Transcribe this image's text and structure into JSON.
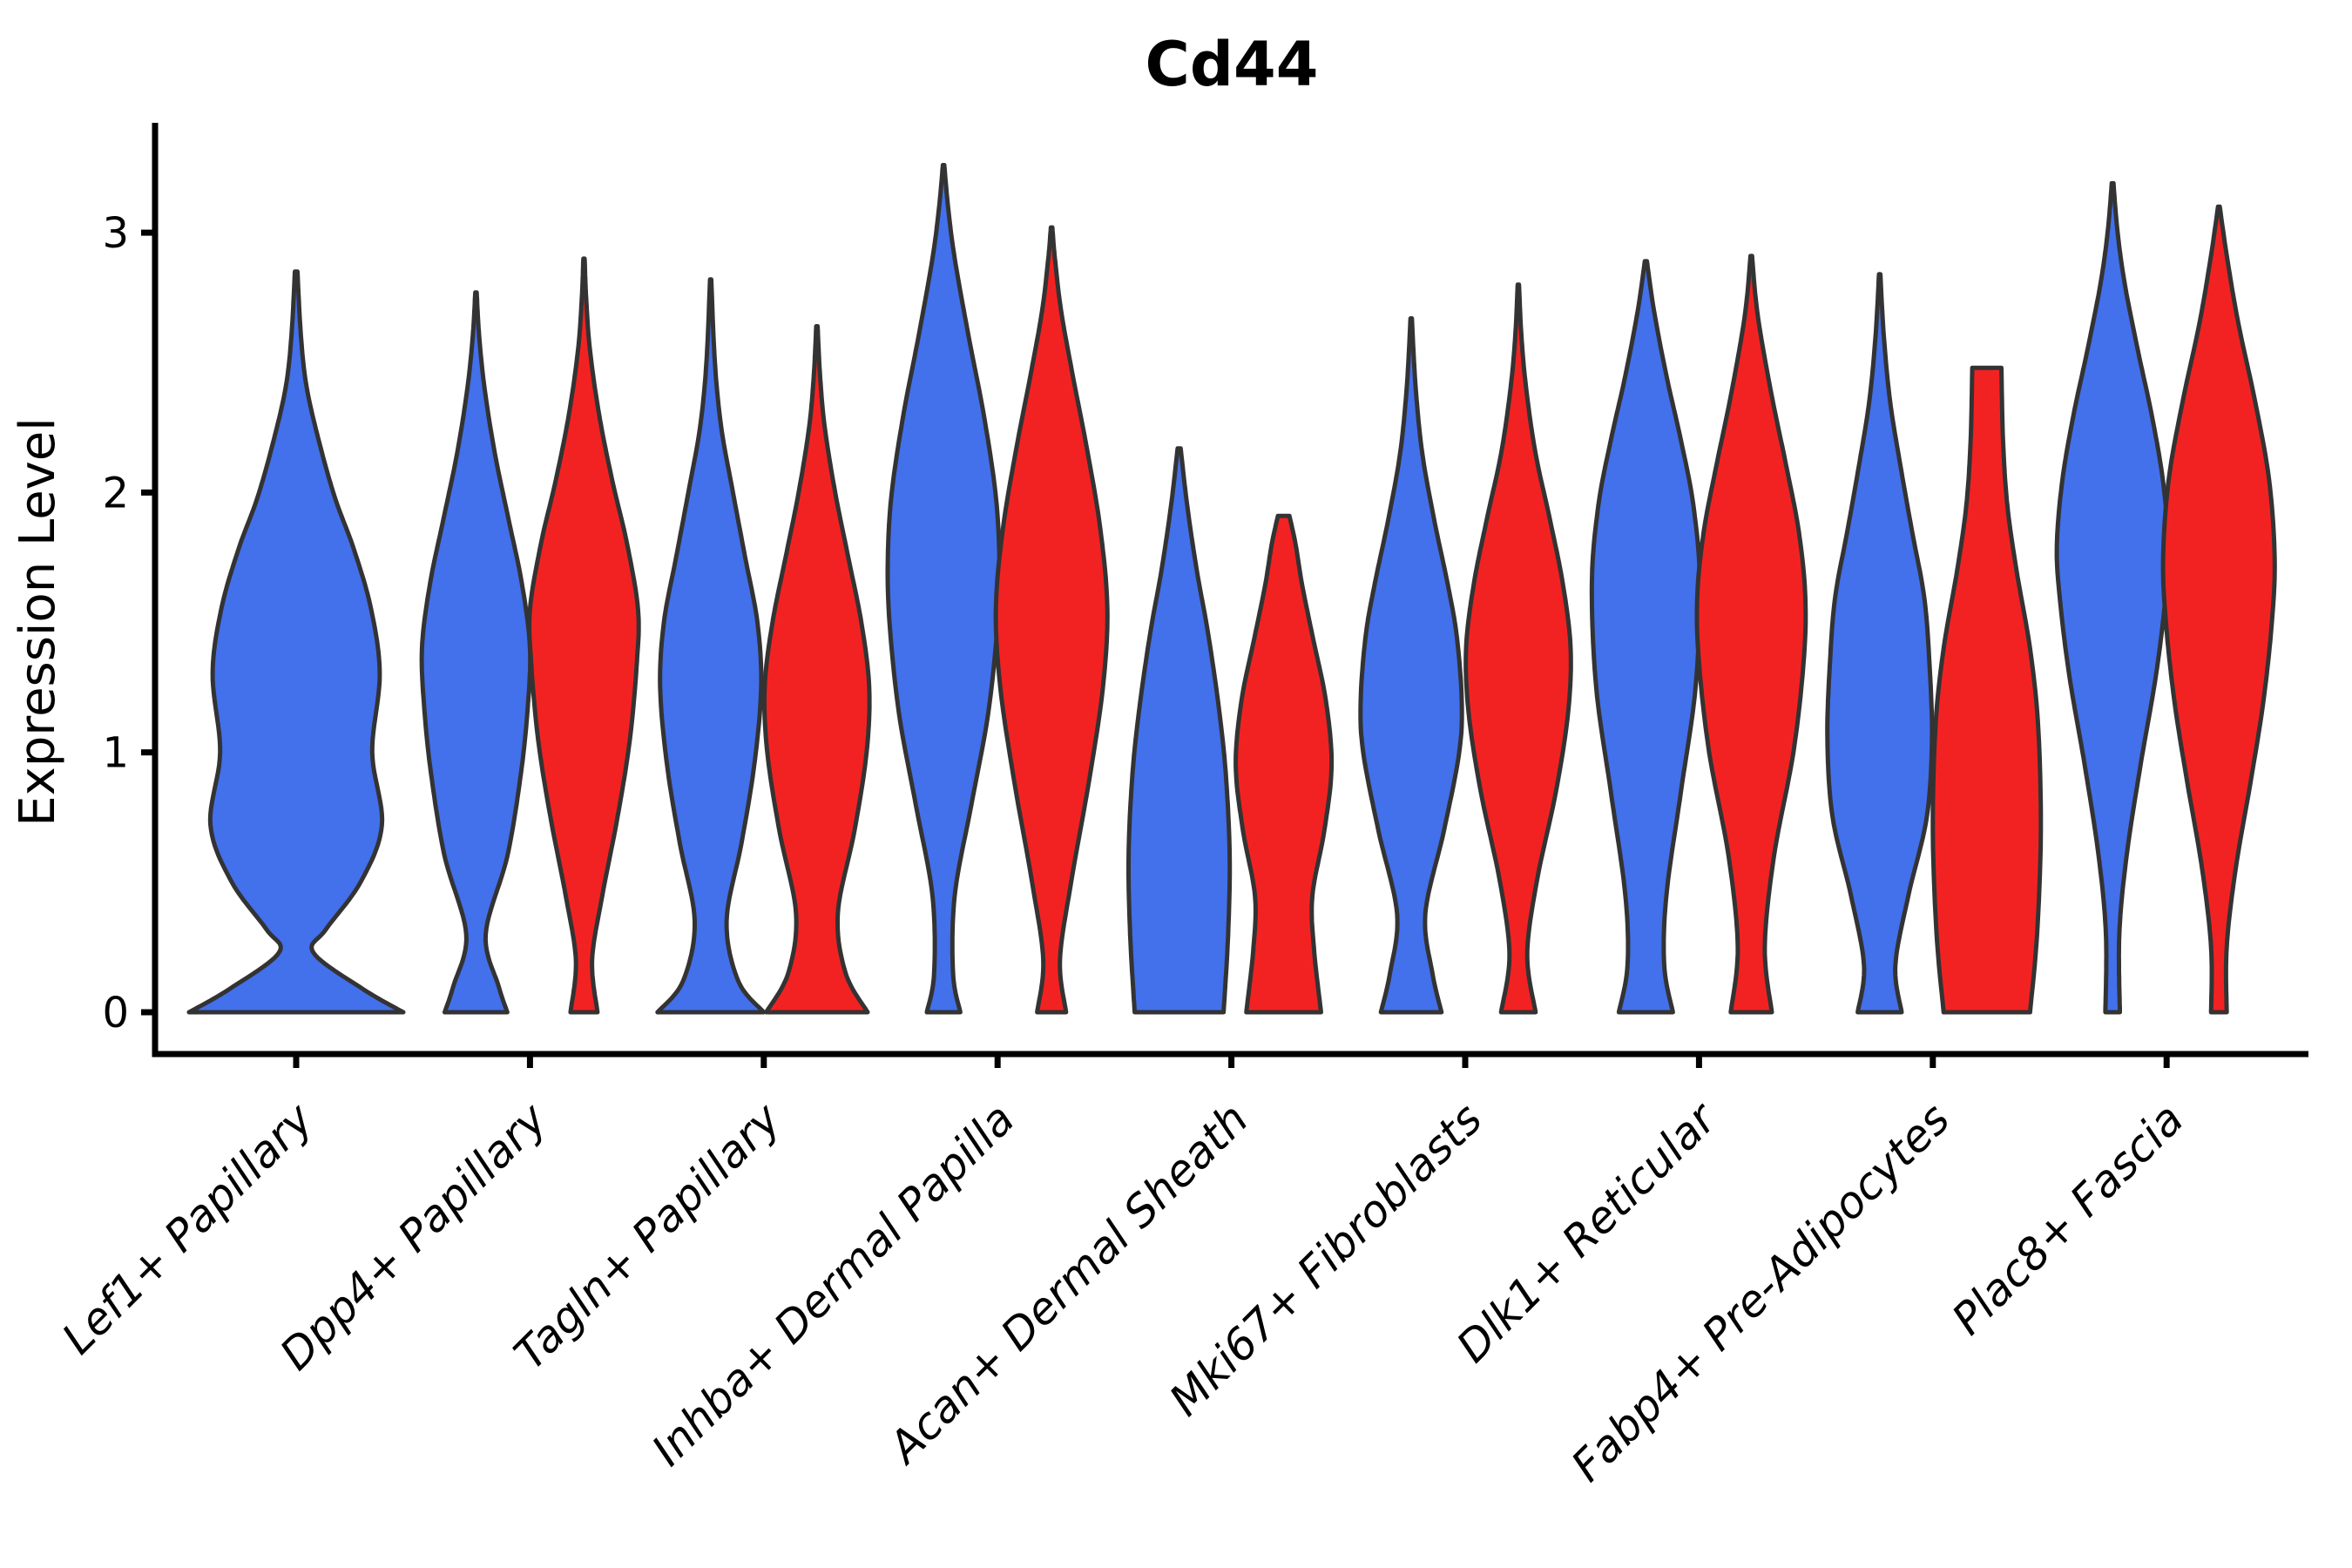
{
  "figure": {
    "background": "#ffffff",
    "axis_color": "#000000",
    "violin_outline_color": "#333333"
  },
  "chart_data": {
    "type": "violin",
    "title": "Cd44",
    "xlabel": "",
    "ylabel": "Expression Level",
    "yticks": [
      0,
      1,
      2,
      3
    ],
    "ylim": [
      -0.16,
      3.43
    ],
    "grid": false,
    "legend_position": "none",
    "colors": {
      "blue": "#4370EB",
      "red": "#F32222"
    },
    "categories": [
      {
        "label": "Lef1+ Papillary",
        "slug": "lef1-papillary",
        "violins": [
          {
            "series": "blue",
            "offset": 0,
            "half_width": 123,
            "max_expression": 2.85,
            "profile": [
              [
                0,
                1.0
              ],
              [
                0.09,
                0.62
              ],
              [
                0.23,
                0.16
              ],
              [
                0.32,
                0.28
              ],
              [
                0.5,
                0.6
              ],
              [
                0.72,
                0.8
              ],
              [
                1.0,
                0.71
              ],
              [
                1.3,
                0.78
              ],
              [
                1.55,
                0.7
              ],
              [
                1.78,
                0.54
              ],
              [
                1.97,
                0.37
              ],
              [
                2.17,
                0.23
              ],
              [
                2.4,
                0.1
              ],
              [
                2.6,
                0.045
              ],
              [
                2.85,
                0.012
              ]
            ]
          }
        ]
      },
      {
        "label": "Dpp4+ Papillary",
        "slug": "dpp4-papillary",
        "violins": [
          {
            "series": "blue",
            "offset": -62,
            "half_width": 62,
            "max_expression": 2.77,
            "profile": [
              [
                0,
                0.58
              ],
              [
                0.1,
                0.42
              ],
              [
                0.3,
                0.18
              ],
              [
                0.6,
                0.58
              ],
              [
                0.9,
                0.82
              ],
              [
                1.15,
                0.95
              ],
              [
                1.4,
                1.0
              ],
              [
                1.65,
                0.85
              ],
              [
                1.9,
                0.6
              ],
              [
                2.15,
                0.35
              ],
              [
                2.4,
                0.16
              ],
              [
                2.6,
                0.06
              ],
              [
                2.77,
                0.013
              ]
            ]
          },
          {
            "series": "red",
            "offset": 62,
            "half_width": 62,
            "max_expression": 2.9,
            "profile": [
              [
                0,
                0.25
              ],
              [
                0.2,
                0.15
              ],
              [
                0.45,
                0.34
              ],
              [
                0.75,
                0.62
              ],
              [
                1.05,
                0.85
              ],
              [
                1.35,
                0.98
              ],
              [
                1.55,
                1.0
              ],
              [
                1.8,
                0.8
              ],
              [
                2.05,
                0.52
              ],
              [
                2.3,
                0.28
              ],
              [
                2.55,
                0.11
              ],
              [
                2.75,
                0.04
              ],
              [
                2.9,
                0.012
              ]
            ]
          }
        ]
      },
      {
        "label": "Tagln+ Papillary",
        "slug": "tagln-papillary",
        "violins": [
          {
            "series": "blue",
            "offset": -61,
            "half_width": 61,
            "max_expression": 2.82,
            "profile": [
              [
                0,
                1.0
              ],
              [
                0.12,
                0.52
              ],
              [
                0.35,
                0.3
              ],
              [
                0.65,
                0.58
              ],
              [
                0.95,
                0.82
              ],
              [
                1.25,
                0.95
              ],
              [
                1.5,
                0.88
              ],
              [
                1.75,
                0.65
              ],
              [
                2.0,
                0.42
              ],
              [
                2.25,
                0.2
              ],
              [
                2.5,
                0.08
              ],
              [
                2.82,
                0.012
              ]
            ]
          },
          {
            "series": "red",
            "offset": 61,
            "half_width": 60,
            "max_expression": 2.64,
            "profile": [
              [
                0,
                0.97
              ],
              [
                0.15,
                0.55
              ],
              [
                0.38,
                0.4
              ],
              [
                0.7,
                0.72
              ],
              [
                1.0,
                0.95
              ],
              [
                1.25,
                1.0
              ],
              [
                1.5,
                0.85
              ],
              [
                1.75,
                0.6
              ],
              [
                2.0,
                0.35
              ],
              [
                2.25,
                0.15
              ],
              [
                2.45,
                0.06
              ],
              [
                2.64,
                0.013
              ]
            ]
          }
        ]
      },
      {
        "label": "Inhba+ Dermal Papilla",
        "slug": "inhba-dermal-papilla",
        "violins": [
          {
            "series": "blue",
            "offset": -62,
            "half_width": 64,
            "max_expression": 3.26,
            "profile": [
              [
                0,
                0.3
              ],
              [
                0.15,
                0.17
              ],
              [
                0.45,
                0.2
              ],
              [
                0.8,
                0.5
              ],
              [
                1.15,
                0.8
              ],
              [
                1.5,
                0.97
              ],
              [
                1.75,
                1.0
              ],
              [
                2.0,
                0.93
              ],
              [
                2.3,
                0.72
              ],
              [
                2.6,
                0.45
              ],
              [
                2.9,
                0.2
              ],
              [
                3.1,
                0.08
              ],
              [
                3.26,
                0.013
              ]
            ]
          },
          {
            "series": "red",
            "offset": 62,
            "half_width": 64,
            "max_expression": 3.02,
            "profile": [
              [
                0,
                0.26
              ],
              [
                0.2,
                0.15
              ],
              [
                0.5,
                0.35
              ],
              [
                0.9,
                0.68
              ],
              [
                1.25,
                0.92
              ],
              [
                1.55,
                1.0
              ],
              [
                1.85,
                0.88
              ],
              [
                2.15,
                0.65
              ],
              [
                2.45,
                0.38
              ],
              [
                2.7,
                0.17
              ],
              [
                2.9,
                0.06
              ],
              [
                3.02,
                0.013
              ]
            ]
          }
        ]
      },
      {
        "label": "Acan+ Dermal Sheath",
        "slug": "acan-dermal-sheath",
        "violins": [
          {
            "series": "blue",
            "offset": -60,
            "half_width": 58,
            "max_expression": 2.17,
            "profile": [
              [
                0,
                0.88
              ],
              [
                0.3,
                0.97
              ],
              [
                0.6,
                1.0
              ],
              [
                0.9,
                0.93
              ],
              [
                1.15,
                0.8
              ],
              [
                1.45,
                0.58
              ],
              [
                1.7,
                0.35
              ],
              [
                1.95,
                0.16
              ],
              [
                2.17,
                0.03
              ]
            ]
          },
          {
            "series": "red",
            "offset": 60,
            "half_width": 55,
            "max_expression": 1.91,
            "profile": [
              [
                0,
                0.78
              ],
              [
                0.25,
                0.63
              ],
              [
                0.45,
                0.6
              ],
              [
                0.7,
                0.85
              ],
              [
                0.95,
                1.0
              ],
              [
                1.2,
                0.88
              ],
              [
                1.45,
                0.6
              ],
              [
                1.65,
                0.38
              ],
              [
                1.8,
                0.25
              ],
              [
                1.91,
                0.12
              ]
            ]
          }
        ]
      },
      {
        "label": "Mki67+ Fibroblasts",
        "slug": "mki67-fibroblasts",
        "violins": [
          {
            "series": "blue",
            "offset": -62,
            "half_width": 58,
            "max_expression": 2.67,
            "profile": [
              [
                0,
                0.6
              ],
              [
                0.15,
                0.42
              ],
              [
                0.38,
                0.28
              ],
              [
                0.7,
                0.65
              ],
              [
                1.0,
                0.95
              ],
              [
                1.2,
                1.0
              ],
              [
                1.45,
                0.9
              ],
              [
                1.65,
                0.72
              ],
              [
                1.9,
                0.45
              ],
              [
                2.15,
                0.22
              ],
              [
                2.4,
                0.09
              ],
              [
                2.67,
                0.013
              ]
            ]
          },
          {
            "series": "red",
            "offset": 61,
            "half_width": 60,
            "max_expression": 2.8,
            "profile": [
              [
                0,
                0.33
              ],
              [
                0.22,
                0.17
              ],
              [
                0.5,
                0.35
              ],
              [
                0.85,
                0.72
              ],
              [
                1.15,
                0.95
              ],
              [
                1.4,
                1.0
              ],
              [
                1.65,
                0.85
              ],
              [
                1.9,
                0.6
              ],
              [
                2.15,
                0.33
              ],
              [
                2.4,
                0.15
              ],
              [
                2.6,
                0.06
              ],
              [
                2.8,
                0.012
              ]
            ]
          }
        ]
      },
      {
        "label": "Dlk1+ Reticular",
        "slug": "dlk1-reticular",
        "violins": [
          {
            "series": "blue",
            "offset": -61,
            "half_width": 62,
            "max_expression": 2.89,
            "profile": [
              [
                0,
                0.5
              ],
              [
                0.18,
                0.34
              ],
              [
                0.45,
                0.38
              ],
              [
                0.85,
                0.65
              ],
              [
                1.25,
                0.92
              ],
              [
                1.65,
                1.0
              ],
              [
                1.95,
                0.88
              ],
              [
                2.2,
                0.65
              ],
              [
                2.45,
                0.38
              ],
              [
                2.7,
                0.15
              ],
              [
                2.89,
                0.02
              ]
            ]
          },
          {
            "series": "red",
            "offset": 60,
            "half_width": 62,
            "max_expression": 2.91,
            "profile": [
              [
                0,
                0.38
              ],
              [
                0.25,
                0.25
              ],
              [
                0.6,
                0.42
              ],
              [
                1.0,
                0.78
              ],
              [
                1.35,
                0.97
              ],
              [
                1.6,
                1.0
              ],
              [
                1.85,
                0.88
              ],
              [
                2.1,
                0.65
              ],
              [
                2.35,
                0.4
              ],
              [
                2.6,
                0.18
              ],
              [
                2.75,
                0.08
              ],
              [
                2.91,
                0.015
              ]
            ]
          }
        ]
      },
      {
        "label": "Fabp4+ Pre-Adipocytes",
        "slug": "fabp4-pre-adipocytes",
        "violins": [
          {
            "series": "blue",
            "offset": -61,
            "half_width": 60,
            "max_expression": 2.84,
            "profile": [
              [
                0,
                0.42
              ],
              [
                0.18,
                0.3
              ],
              [
                0.45,
                0.55
              ],
              [
                0.75,
                0.9
              ],
              [
                1.05,
                1.0
              ],
              [
                1.35,
                0.95
              ],
              [
                1.6,
                0.85
              ],
              [
                1.85,
                0.62
              ],
              [
                2.1,
                0.4
              ],
              [
                2.35,
                0.2
              ],
              [
                2.6,
                0.08
              ],
              [
                2.84,
                0.013
              ]
            ]
          },
          {
            "series": "red",
            "offset": 62,
            "half_width": 62,
            "max_expression": 2.48,
            "profile": [
              [
                0,
                0.8
              ],
              [
                0.3,
                0.93
              ],
              [
                0.7,
                1.0
              ],
              [
                1.1,
                0.95
              ],
              [
                1.4,
                0.8
              ],
              [
                1.7,
                0.55
              ],
              [
                1.95,
                0.38
              ],
              [
                2.2,
                0.3
              ],
              [
                2.48,
                0.27
              ]
            ]
          }
        ]
      },
      {
        "label": "Plac8+ Fascia",
        "slug": "plac8-fascia",
        "violins": [
          {
            "series": "blue",
            "offset": -62,
            "half_width": 64,
            "max_expression": 3.19,
            "profile": [
              [
                0,
                0.13
              ],
              [
                0.3,
                0.12
              ],
              [
                0.6,
                0.25
              ],
              [
                0.95,
                0.5
              ],
              [
                1.3,
                0.78
              ],
              [
                1.6,
                0.95
              ],
              [
                1.8,
                1.0
              ],
              [
                2.05,
                0.9
              ],
              [
                2.3,
                0.7
              ],
              [
                2.55,
                0.45
              ],
              [
                2.8,
                0.22
              ],
              [
                3.0,
                0.09
              ],
              [
                3.19,
                0.015
              ]
            ]
          },
          {
            "series": "red",
            "offset": 60,
            "half_width": 64,
            "max_expression": 3.1,
            "profile": [
              [
                0,
                0.14
              ],
              [
                0.25,
                0.14
              ],
              [
                0.55,
                0.3
              ],
              [
                0.9,
                0.58
              ],
              [
                1.2,
                0.8
              ],
              [
                1.5,
                0.95
              ],
              [
                1.75,
                1.0
              ],
              [
                2.05,
                0.9
              ],
              [
                2.35,
                0.65
              ],
              [
                2.65,
                0.35
              ],
              [
                2.9,
                0.15
              ],
              [
                3.1,
                0.015
              ]
            ]
          }
        ]
      }
    ]
  }
}
